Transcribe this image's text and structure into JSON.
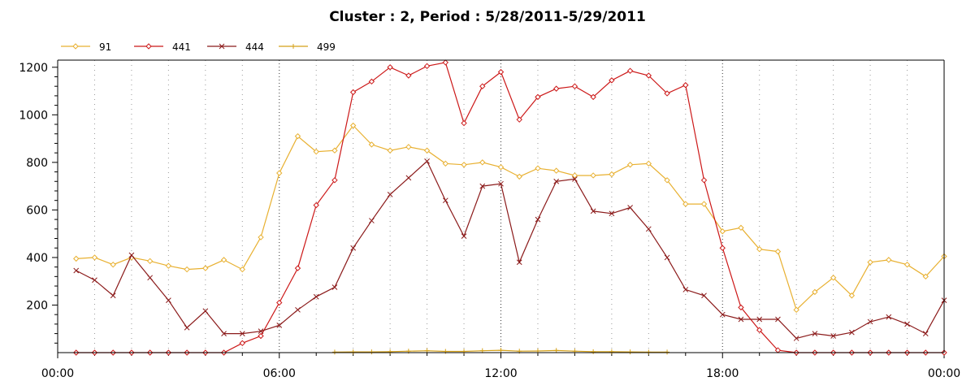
{
  "chart_data": {
    "type": "line",
    "title": "Cluster : 2, Period : 5/28/2011-5/29/2011",
    "xlabel": "",
    "ylabel": "",
    "x_ticks": [
      "00:00",
      "06:00",
      "12:00",
      "18:00",
      "00:00"
    ],
    "y_ticks": [
      200,
      400,
      600,
      800,
      1000,
      1200
    ],
    "xlim": [
      0,
      24
    ],
    "ylim": [
      0,
      1230
    ],
    "grid": true,
    "legend_position": "top-left",
    "series": [
      {
        "name": "91",
        "color": "#e8b030",
        "marker": "diamond",
        "x": [
          0.5,
          1.0,
          1.5,
          2.0,
          2.5,
          3.0,
          3.5,
          4.0,
          4.5,
          5.0,
          5.5,
          6.0,
          6.5,
          7.0,
          7.5,
          8.0,
          8.5,
          9.0,
          9.5,
          10.0,
          10.5,
          11.0,
          11.5,
          12.0,
          12.5,
          13.0,
          13.5,
          14.0,
          14.5,
          15.0,
          15.5,
          16.0,
          16.5,
          17.0,
          17.5,
          18.0,
          18.5,
          19.0,
          19.5,
          20.0,
          20.5,
          21.0,
          21.5,
          22.0,
          22.5,
          23.0,
          23.5,
          24.0
        ],
        "y": [
          395,
          400,
          370,
          400,
          385,
          365,
          350,
          355,
          390,
          350,
          485,
          755,
          910,
          845,
          850,
          955,
          875,
          850,
          865,
          850,
          795,
          790,
          800,
          780,
          740,
          775,
          765,
          745,
          745,
          750,
          790,
          795,
          725,
          625,
          625,
          510,
          525,
          435,
          425,
          180,
          255,
          315,
          240,
          380,
          390,
          370,
          320,
          405
        ]
      },
      {
        "name": "441",
        "color": "#cc1818",
        "marker": "diamond",
        "x": [
          0.5,
          1.0,
          1.5,
          2.0,
          2.5,
          3.0,
          3.5,
          4.0,
          4.5,
          5.0,
          5.5,
          6.0,
          6.5,
          7.0,
          7.5,
          8.0,
          8.5,
          9.0,
          9.5,
          10.0,
          10.5,
          11.0,
          11.5,
          12.0,
          12.5,
          13.0,
          13.5,
          14.0,
          14.5,
          15.0,
          15.5,
          16.0,
          16.5,
          17.0,
          17.5,
          18.0,
          18.5,
          19.0,
          19.5,
          20.0,
          20.5,
          21.0,
          21.5,
          22.0,
          22.5,
          23.0,
          23.5,
          24.0
        ],
        "y": [
          0,
          0,
          0,
          0,
          0,
          0,
          0,
          0,
          0,
          40,
          70,
          210,
          355,
          620,
          725,
          1095,
          1140,
          1200,
          1165,
          1205,
          1220,
          965,
          1120,
          1180,
          980,
          1075,
          1110,
          1120,
          1075,
          1145,
          1185,
          1165,
          1090,
          1125,
          725,
          440,
          190,
          95,
          10,
          0,
          0,
          0,
          0,
          0,
          0,
          0,
          0,
          0
        ]
      },
      {
        "name": "444",
        "color": "#8b1a1a",
        "marker": "x",
        "x": [
          0.5,
          1.0,
          1.5,
          2.0,
          2.5,
          3.0,
          3.5,
          4.0,
          4.5,
          5.0,
          5.5,
          6.0,
          6.5,
          7.0,
          7.5,
          8.0,
          8.5,
          9.0,
          9.5,
          10.0,
          10.5,
          11.0,
          11.5,
          12.0,
          12.5,
          13.0,
          13.5,
          14.0,
          14.5,
          15.0,
          15.5,
          16.0,
          16.5,
          17.0,
          17.5,
          18.0,
          18.5,
          19.0,
          19.5,
          20.0,
          20.5,
          21.0,
          21.5,
          22.0,
          22.5,
          23.0,
          23.5,
          24.0
        ],
        "y": [
          345,
          305,
          240,
          410,
          315,
          220,
          105,
          175,
          80,
          80,
          90,
          115,
          180,
          235,
          275,
          440,
          555,
          665,
          735,
          805,
          640,
          490,
          700,
          710,
          380,
          560,
          720,
          730,
          595,
          585,
          610,
          520,
          400,
          265,
          240,
          160,
          140,
          140,
          140,
          60,
          80,
          70,
          85,
          130,
          150,
          120,
          80,
          220
        ]
      },
      {
        "name": "499",
        "color": "#d4a017",
        "marker": "plus",
        "x": [
          7.5,
          8.0,
          8.5,
          9.0,
          9.5,
          10.0,
          10.5,
          11.0,
          11.5,
          12.0,
          12.5,
          13.0,
          13.5,
          14.0,
          14.5,
          15.0,
          15.5,
          16.0,
          16.5
        ],
        "y": [
          2,
          3,
          3,
          4,
          6,
          8,
          5,
          5,
          8,
          10,
          6,
          7,
          9,
          6,
          4,
          4,
          3,
          2,
          2
        ]
      }
    ]
  }
}
